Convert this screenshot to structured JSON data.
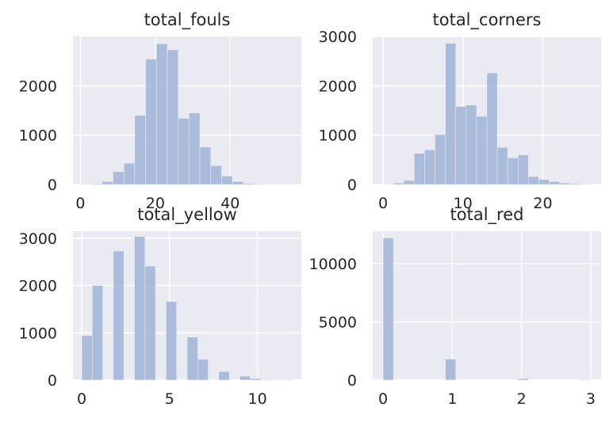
{
  "chart_data": [
    {
      "type": "bar",
      "title": "total_fouls",
      "xlabel": "",
      "ylabel": "",
      "xlim": [
        -2,
        59
      ],
      "ylim": [
        0,
        3000
      ],
      "grid": true,
      "xticks": [
        0,
        20,
        40
      ],
      "yticks": [
        0,
        1000,
        2000
      ],
      "bin_edges": [
        0,
        2.9,
        5.8,
        8.7,
        11.6,
        14.5,
        17.4,
        20.3,
        23.2,
        26.1,
        29,
        31.9,
        34.8,
        37.7,
        40.6,
        43.5,
        46.4,
        49.3,
        52.2,
        55.1,
        58
      ],
      "values": [
        5,
        15,
        60,
        260,
        430,
        1400,
        2540,
        2850,
        2730,
        1340,
        1450,
        760,
        380,
        170,
        60,
        20,
        10,
        5,
        3,
        2
      ],
      "color": "#a8b8d8"
    },
    {
      "type": "bar",
      "title": "total_corners",
      "xlabel": "",
      "ylabel": "",
      "xlim": [
        -1.3,
        27.3
      ],
      "ylim": [
        0,
        3000
      ],
      "grid": true,
      "xticks": [
        0,
        10,
        20
      ],
      "yticks": [
        0,
        1000,
        2000,
        3000
      ],
      "bin_edges": [
        0,
        1.3,
        2.6,
        3.9,
        5.2,
        6.5,
        7.8,
        9.1,
        10.4,
        11.7,
        13,
        14.3,
        15.6,
        16.9,
        18.2,
        19.5,
        20.8,
        22.1,
        23.4,
        24.7,
        26
      ],
      "values": [
        5,
        30,
        80,
        630,
        700,
        1010,
        2860,
        1580,
        1610,
        1380,
        2260,
        750,
        540,
        600,
        160,
        100,
        60,
        30,
        20,
        10
      ],
      "color": "#a8b8d8"
    },
    {
      "type": "bar",
      "title": "total_yellow",
      "xlabel": "",
      "ylabel": "",
      "xlim": [
        -0.5,
        12.5
      ],
      "ylim": [
        0,
        3150
      ],
      "grid": true,
      "xticks": [
        0,
        5,
        10
      ],
      "yticks": [
        0,
        1000,
        2000,
        3000
      ],
      "bin_edges": [
        0,
        0.6,
        1.2,
        1.8,
        2.4,
        3,
        3.6,
        4.2,
        4.8,
        5.4,
        6,
        6.6,
        7.2,
        7.8,
        8.4,
        9,
        9.6,
        10.2,
        10.8,
        11.4,
        12
      ],
      "values": [
        940,
        2000,
        0,
        2730,
        0,
        3040,
        2410,
        0,
        1660,
        0,
        910,
        440,
        0,
        180,
        0,
        80,
        30,
        10,
        5,
        3
      ],
      "color": "#a8b8d8"
    },
    {
      "type": "bar",
      "title": "total_red",
      "xlabel": "",
      "ylabel": "",
      "xlim": [
        -0.15,
        3.15
      ],
      "ylim": [
        0,
        12800
      ],
      "grid": true,
      "xticks": [
        0,
        1,
        2,
        3
      ],
      "yticks": [
        0,
        5000,
        10000
      ],
      "bin_edges": [
        0,
        0.15,
        0.3,
        0.45,
        0.6,
        0.75,
        0.9,
        1.05,
        1.2,
        1.35,
        1.5,
        1.65,
        1.8,
        1.95,
        2.1,
        2.25,
        2.4,
        2.55,
        2.7,
        2.85,
        3
      ],
      "values": [
        12220,
        0,
        0,
        0,
        0,
        0,
        1800,
        0,
        0,
        0,
        0,
        0,
        0,
        130,
        0,
        0,
        0,
        0,
        0,
        10
      ],
      "color": "#a8b8d8"
    }
  ]
}
